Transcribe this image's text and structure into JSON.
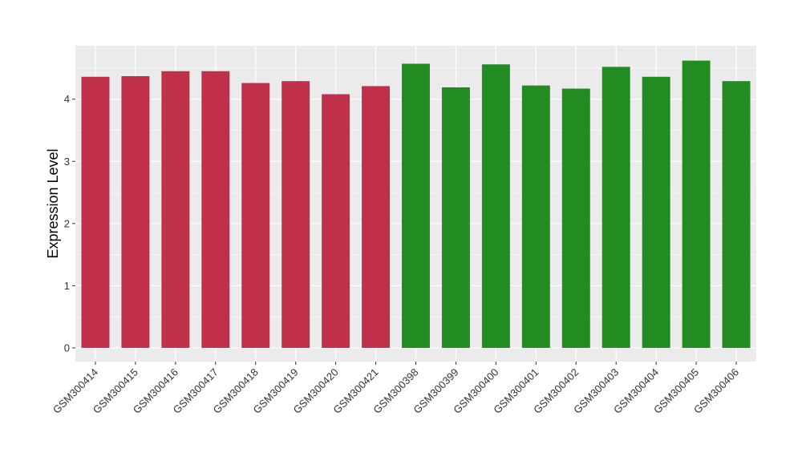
{
  "chart_data": {
    "type": "bar",
    "ylabel": "Expression Level",
    "ylim": [
      -0.22,
      4.86
    ],
    "y_ticks": [
      0,
      1,
      2,
      3,
      4
    ],
    "y_tick_labels": [
      "0",
      "1",
      "2",
      "3",
      "4"
    ],
    "grid": true,
    "categories": [
      "GSM300414",
      "GSM300415",
      "GSM300416",
      "GSM300417",
      "GSM300418",
      "GSM300419",
      "GSM300420",
      "GSM300421",
      "GSM300398",
      "GSM300399",
      "GSM300400",
      "GSM300401",
      "GSM300402",
      "GSM300403",
      "GSM300404",
      "GSM300405",
      "GSM300406"
    ],
    "values": [
      4.36,
      4.37,
      4.45,
      4.45,
      4.26,
      4.29,
      4.08,
      4.21,
      4.57,
      4.19,
      4.56,
      4.22,
      4.17,
      4.52,
      4.36,
      4.62,
      4.29
    ],
    "groups": [
      {
        "color": "#C0304A",
        "count": 8
      },
      {
        "color": "#228B22",
        "count": 9
      }
    ],
    "panel_background": "#EBEBEB",
    "grid_color": "#FFFFFF"
  }
}
